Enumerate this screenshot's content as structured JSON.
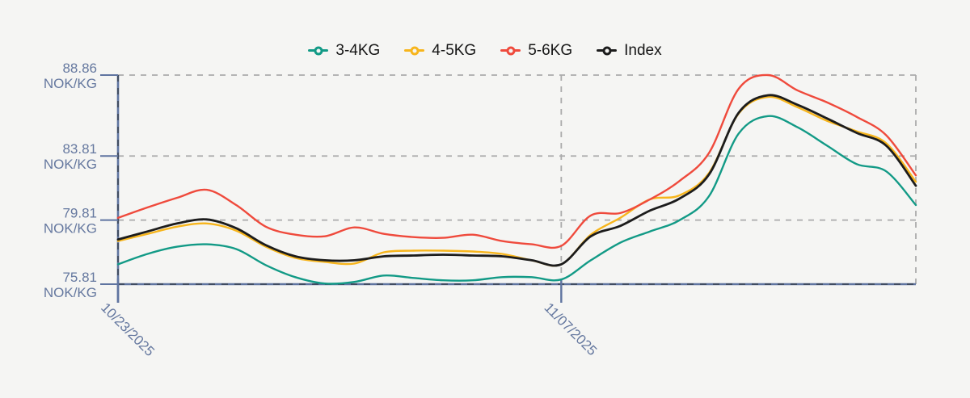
{
  "page": {
    "background": "#f5f5f3",
    "axis_color": "#5f74a0",
    "axis_dash_color": "#404c61",
    "grid_color": "#ababab",
    "label_color": "#65789f"
  },
  "legend": {
    "items": [
      {
        "label": "3-4KG",
        "color": "#129a86"
      },
      {
        "label": "4-5KG",
        "color": "#f7b51c"
      },
      {
        "label": "5-6KG",
        "color": "#ef4a3c"
      },
      {
        "label": "Index",
        "color": "#1c1c1c"
      }
    ]
  },
  "chart_data": {
    "type": "line",
    "title": "",
    "xlabel": "",
    "ylabel": "",
    "unit": "NOK/KG",
    "ylim": [
      75.81,
      88.86
    ],
    "y_ticks": [
      88.86,
      83.81,
      79.81,
      75.81
    ],
    "y_tick_unit": "NOK/KG",
    "num_points": 28,
    "x_tick_labels": [
      {
        "index": 0,
        "label": "10/23/2025"
      },
      {
        "index": 15,
        "label": "11/07/2025"
      }
    ],
    "grid": {
      "dashed": true,
      "vertical_line_indices": [
        0,
        15,
        27
      ],
      "legend_position": "top"
    },
    "series": [
      {
        "name": "3-4KG",
        "color": "#129a86",
        "width": 2.4,
        "values": [
          77.05,
          77.7,
          78.15,
          78.3,
          78.0,
          77.0,
          76.25,
          75.85,
          75.95,
          76.35,
          76.2,
          76.05,
          76.05,
          76.25,
          76.25,
          76.1,
          77.3,
          78.4,
          79.1,
          79.8,
          81.3,
          85.2,
          86.3,
          85.6,
          84.45,
          83.3,
          82.85,
          80.75
        ]
      },
      {
        "name": "4-5KG",
        "color": "#f7b51c",
        "width": 2.4,
        "values": [
          78.5,
          78.95,
          79.4,
          79.6,
          79.15,
          78.15,
          77.45,
          77.2,
          77.1,
          77.8,
          77.9,
          77.9,
          77.85,
          77.7,
          77.3,
          77.05,
          78.9,
          79.95,
          81.1,
          81.35,
          82.75,
          86.45,
          87.5,
          86.85,
          86.0,
          85.35,
          84.6,
          82.2
        ]
      },
      {
        "name": "5-6KG",
        "color": "#ef4a3c",
        "width": 2.4,
        "values": [
          79.95,
          80.6,
          81.2,
          81.7,
          80.75,
          79.4,
          78.9,
          78.8,
          79.35,
          78.95,
          78.75,
          78.7,
          78.9,
          78.5,
          78.3,
          78.2,
          80.1,
          80.25,
          81.1,
          82.25,
          84.0,
          88.0,
          88.86,
          87.9,
          87.15,
          86.25,
          85.1,
          82.6
        ]
      },
      {
        "name": "Index",
        "color": "#1c1c1c",
        "width": 2.8,
        "values": [
          78.6,
          79.1,
          79.6,
          79.85,
          79.3,
          78.25,
          77.55,
          77.3,
          77.3,
          77.55,
          77.6,
          77.65,
          77.6,
          77.55,
          77.3,
          77.05,
          78.8,
          79.45,
          80.4,
          81.15,
          82.65,
          86.5,
          87.6,
          87.0,
          86.15,
          85.25,
          84.45,
          81.95
        ]
      }
    ]
  }
}
